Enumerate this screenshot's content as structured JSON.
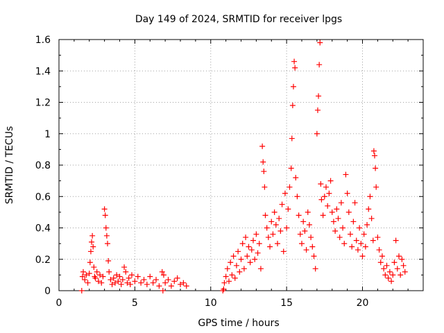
{
  "chart_data": {
    "type": "scatter",
    "title": "Day 149 of 2024, SRMTID for receiver lpgs",
    "xlabel": "GPS time / hours",
    "ylabel": "SRMTID / TECUs",
    "xlim": [
      0,
      24
    ],
    "ylim": [
      0,
      1.6
    ],
    "xticks": [
      0,
      5,
      10,
      15,
      20
    ],
    "yticks": [
      0,
      0.2,
      0.4,
      0.6,
      0.8,
      1,
      1.2,
      1.4,
      1.6
    ],
    "ytick_labels": [
      "0",
      "0.2",
      "0.4",
      "0.6",
      "0.8",
      "1",
      "1.2",
      "1.4",
      "1.6"
    ],
    "grid": true,
    "marker": "+",
    "color": "#ff0000",
    "series": [
      {
        "name": "SRMTID",
        "points": [
          [
            1.5,
            0.0
          ],
          [
            1.55,
            0.09
          ],
          [
            1.6,
            0.12
          ],
          [
            1.7,
            0.07
          ],
          [
            1.8,
            0.1
          ],
          [
            1.9,
            0.05
          ],
          [
            2.0,
            0.11
          ],
          [
            2.05,
            0.18
          ],
          [
            2.1,
            0.25
          ],
          [
            2.15,
            0.31
          ],
          [
            2.2,
            0.35
          ],
          [
            2.25,
            0.28
          ],
          [
            2.3,
            0.15
          ],
          [
            2.35,
            0.09
          ],
          [
            2.4,
            0.08
          ],
          [
            2.5,
            0.12
          ],
          [
            2.6,
            0.06
          ],
          [
            2.7,
            0.1
          ],
          [
            2.8,
            0.05
          ],
          [
            2.9,
            0.09
          ],
          [
            3.0,
            0.52
          ],
          [
            3.05,
            0.48
          ],
          [
            3.1,
            0.4
          ],
          [
            3.15,
            0.35
          ],
          [
            3.2,
            0.3
          ],
          [
            3.25,
            0.19
          ],
          [
            3.3,
            0.12
          ],
          [
            3.4,
            0.07
          ],
          [
            3.5,
            0.04
          ],
          [
            3.6,
            0.08
          ],
          [
            3.7,
            0.05
          ],
          [
            3.8,
            0.1
          ],
          [
            3.9,
            0.06
          ],
          [
            4.0,
            0.09
          ],
          [
            4.1,
            0.04
          ],
          [
            4.2,
            0.07
          ],
          [
            4.3,
            0.15
          ],
          [
            4.4,
            0.12
          ],
          [
            4.5,
            0.05
          ],
          [
            4.6,
            0.08
          ],
          [
            4.7,
            0.04
          ],
          [
            4.8,
            0.1
          ],
          [
            5.0,
            0.06
          ],
          [
            5.2,
            0.09
          ],
          [
            5.4,
            0.05
          ],
          [
            5.6,
            0.07
          ],
          [
            5.8,
            0.04
          ],
          [
            6.0,
            0.09
          ],
          [
            6.2,
            0.05
          ],
          [
            6.4,
            0.07
          ],
          [
            6.6,
            0.03
          ],
          [
            6.8,
            0.12
          ],
          [
            6.85,
            0.0
          ],
          [
            6.9,
            0.1
          ],
          [
            7.0,
            0.05
          ],
          [
            7.2,
            0.07
          ],
          [
            7.4,
            0.03
          ],
          [
            7.6,
            0.06
          ],
          [
            7.8,
            0.08
          ],
          [
            8.0,
            0.04
          ],
          [
            8.2,
            0.05
          ],
          [
            8.4,
            0.03
          ],
          [
            10.8,
            0.0
          ],
          [
            10.85,
            0.01
          ],
          [
            10.9,
            0.05
          ],
          [
            11.0,
            0.09
          ],
          [
            11.1,
            0.14
          ],
          [
            11.2,
            0.06
          ],
          [
            11.3,
            0.18
          ],
          [
            11.4,
            0.1
          ],
          [
            11.5,
            0.22
          ],
          [
            11.6,
            0.08
          ],
          [
            11.7,
            0.16
          ],
          [
            11.8,
            0.25
          ],
          [
            11.9,
            0.12
          ],
          [
            12.0,
            0.2
          ],
          [
            12.1,
            0.3
          ],
          [
            12.2,
            0.14
          ],
          [
            12.3,
            0.34
          ],
          [
            12.4,
            0.22
          ],
          [
            12.5,
            0.28
          ],
          [
            12.6,
            0.18
          ],
          [
            12.7,
            0.26
          ],
          [
            12.8,
            0.32
          ],
          [
            12.9,
            0.2
          ],
          [
            13.0,
            0.36
          ],
          [
            13.1,
            0.24
          ],
          [
            13.2,
            0.3
          ],
          [
            13.3,
            0.14
          ],
          [
            13.4,
            0.92
          ],
          [
            13.45,
            0.82
          ],
          [
            13.5,
            0.76
          ],
          [
            13.55,
            0.66
          ],
          [
            13.6,
            0.48
          ],
          [
            13.7,
            0.4
          ],
          [
            13.8,
            0.34
          ],
          [
            13.9,
            0.28
          ],
          [
            14.0,
            0.44
          ],
          [
            14.1,
            0.36
          ],
          [
            14.2,
            0.5
          ],
          [
            14.3,
            0.42
          ],
          [
            14.4,
            0.3
          ],
          [
            14.5,
            0.46
          ],
          [
            14.6,
            0.38
          ],
          [
            14.7,
            0.55
          ],
          [
            14.8,
            0.25
          ],
          [
            14.9,
            0.62
          ],
          [
            15.0,
            0.4
          ],
          [
            15.1,
            0.52
          ],
          [
            15.2,
            0.66
          ],
          [
            15.3,
            0.78
          ],
          [
            15.35,
            0.97
          ],
          [
            15.4,
            1.18
          ],
          [
            15.45,
            1.3
          ],
          [
            15.5,
            1.46
          ],
          [
            15.55,
            1.42
          ],
          [
            15.6,
            0.72
          ],
          [
            15.7,
            0.6
          ],
          [
            15.8,
            0.48
          ],
          [
            15.9,
            0.36
          ],
          [
            16.0,
            0.3
          ],
          [
            16.1,
            0.44
          ],
          [
            16.2,
            0.38
          ],
          [
            16.3,
            0.26
          ],
          [
            16.4,
            0.5
          ],
          [
            16.5,
            0.42
          ],
          [
            16.6,
            0.34
          ],
          [
            16.7,
            0.28
          ],
          [
            16.8,
            0.22
          ],
          [
            16.9,
            0.14
          ],
          [
            17.0,
            1.0
          ],
          [
            17.05,
            1.15
          ],
          [
            17.1,
            1.24
          ],
          [
            17.15,
            1.44
          ],
          [
            17.2,
            1.58
          ],
          [
            17.25,
            0.68
          ],
          [
            17.3,
            0.58
          ],
          [
            17.4,
            0.48
          ],
          [
            17.5,
            0.6
          ],
          [
            17.6,
            0.66
          ],
          [
            17.7,
            0.54
          ],
          [
            17.8,
            0.62
          ],
          [
            17.9,
            0.7
          ],
          [
            18.0,
            0.5
          ],
          [
            18.1,
            0.44
          ],
          [
            18.2,
            0.38
          ],
          [
            18.3,
            0.52
          ],
          [
            18.4,
            0.46
          ],
          [
            18.5,
            0.34
          ],
          [
            18.6,
            0.56
          ],
          [
            18.7,
            0.4
          ],
          [
            18.8,
            0.3
          ],
          [
            18.9,
            0.74
          ],
          [
            19.0,
            0.62
          ],
          [
            19.1,
            0.5
          ],
          [
            19.2,
            0.36
          ],
          [
            19.3,
            0.28
          ],
          [
            19.4,
            0.44
          ],
          [
            19.5,
            0.56
          ],
          [
            19.6,
            0.32
          ],
          [
            19.7,
            0.26
          ],
          [
            19.8,
            0.4
          ],
          [
            19.9,
            0.3
          ],
          [
            20.0,
            0.22
          ],
          [
            20.1,
            0.36
          ],
          [
            20.2,
            0.28
          ],
          [
            20.3,
            0.42
          ],
          [
            20.4,
            0.52
          ],
          [
            20.5,
            0.6
          ],
          [
            20.6,
            0.46
          ],
          [
            20.7,
            0.32
          ],
          [
            20.75,
            0.89
          ],
          [
            20.8,
            0.86
          ],
          [
            20.85,
            0.78
          ],
          [
            20.9,
            0.66
          ],
          [
            21.0,
            0.34
          ],
          [
            21.1,
            0.26
          ],
          [
            21.2,
            0.18
          ],
          [
            21.3,
            0.22
          ],
          [
            21.4,
            0.14
          ],
          [
            21.5,
            0.1
          ],
          [
            21.6,
            0.16
          ],
          [
            21.7,
            0.08
          ],
          [
            21.8,
            0.12
          ],
          [
            21.9,
            0.06
          ],
          [
            22.0,
            0.1
          ],
          [
            22.1,
            0.18
          ],
          [
            22.2,
            0.32
          ],
          [
            22.3,
            0.14
          ],
          [
            22.4,
            0.22
          ],
          [
            22.5,
            0.1
          ],
          [
            22.6,
            0.2
          ],
          [
            22.7,
            0.16
          ],
          [
            22.8,
            0.12
          ]
        ]
      }
    ]
  }
}
